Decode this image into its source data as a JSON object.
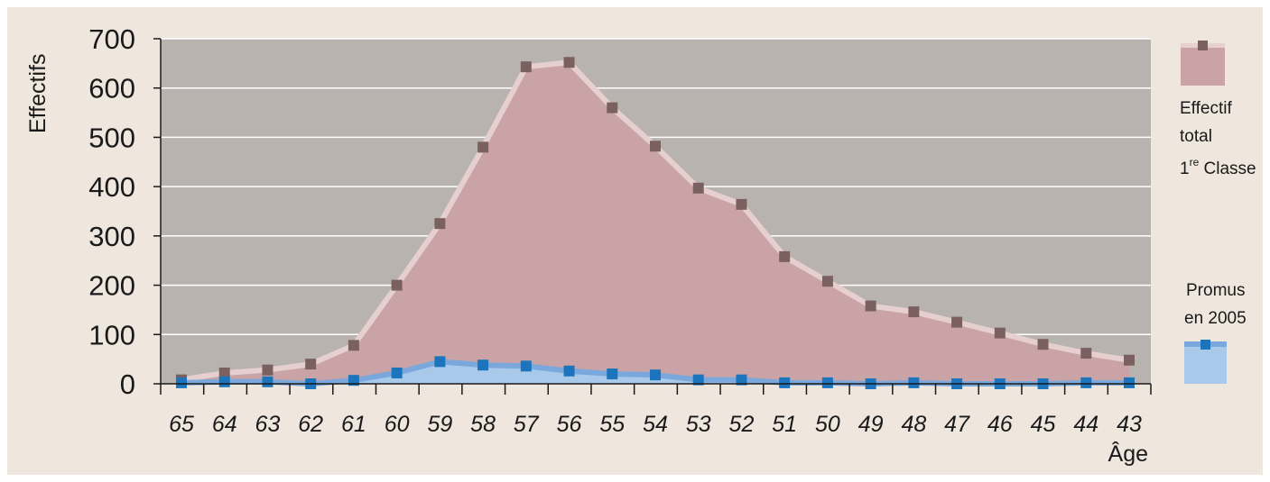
{
  "chart_data": {
    "type": "area",
    "xlabel": "Âge",
    "ylabel": "Effectifs",
    "ylim": [
      0,
      700
    ],
    "yticks": [
      0,
      100,
      200,
      300,
      400,
      500,
      600,
      700
    ],
    "grid": true,
    "legend_position": "right",
    "categories": [
      "65",
      "64",
      "63",
      "62",
      "61",
      "60",
      "59",
      "58",
      "57",
      "56",
      "55",
      "54",
      "53",
      "52",
      "51",
      "50",
      "49",
      "48",
      "47",
      "46",
      "45",
      "44",
      "43"
    ],
    "series": [
      {
        "name": "Effectif total 1re Classe",
        "values": [
          8,
          22,
          28,
          40,
          78,
          200,
          325,
          480,
          643,
          652,
          560,
          482,
          397,
          364,
          258,
          208,
          158,
          146,
          125,
          103,
          80,
          62,
          48
        ],
        "fill": "#c9a3a6",
        "line": "#e6cfcf",
        "marker": "#7b6060"
      },
      {
        "name": "Promus en 2005",
        "values": [
          2,
          4,
          4,
          0,
          7,
          22,
          45,
          38,
          36,
          26,
          20,
          18,
          8,
          8,
          2,
          2,
          0,
          2,
          0,
          0,
          0,
          2,
          2
        ],
        "fill": "#a9c9ea",
        "line": "#7aa8dd",
        "marker": "#1c75bc"
      }
    ]
  },
  "legend": {
    "total_line1": "Effectif",
    "total_line2": "total",
    "total_line3_num": "1",
    "total_line3_sup": "re",
    "total_line3_rest": " Classe",
    "promus_line1": "Promus",
    "promus_line2": "en 2005"
  },
  "colors": {
    "background": "#efe6dd",
    "plot_area": "#b9b3b0",
    "gridline": "#ffffff",
    "axis": "#1a1a1a"
  }
}
